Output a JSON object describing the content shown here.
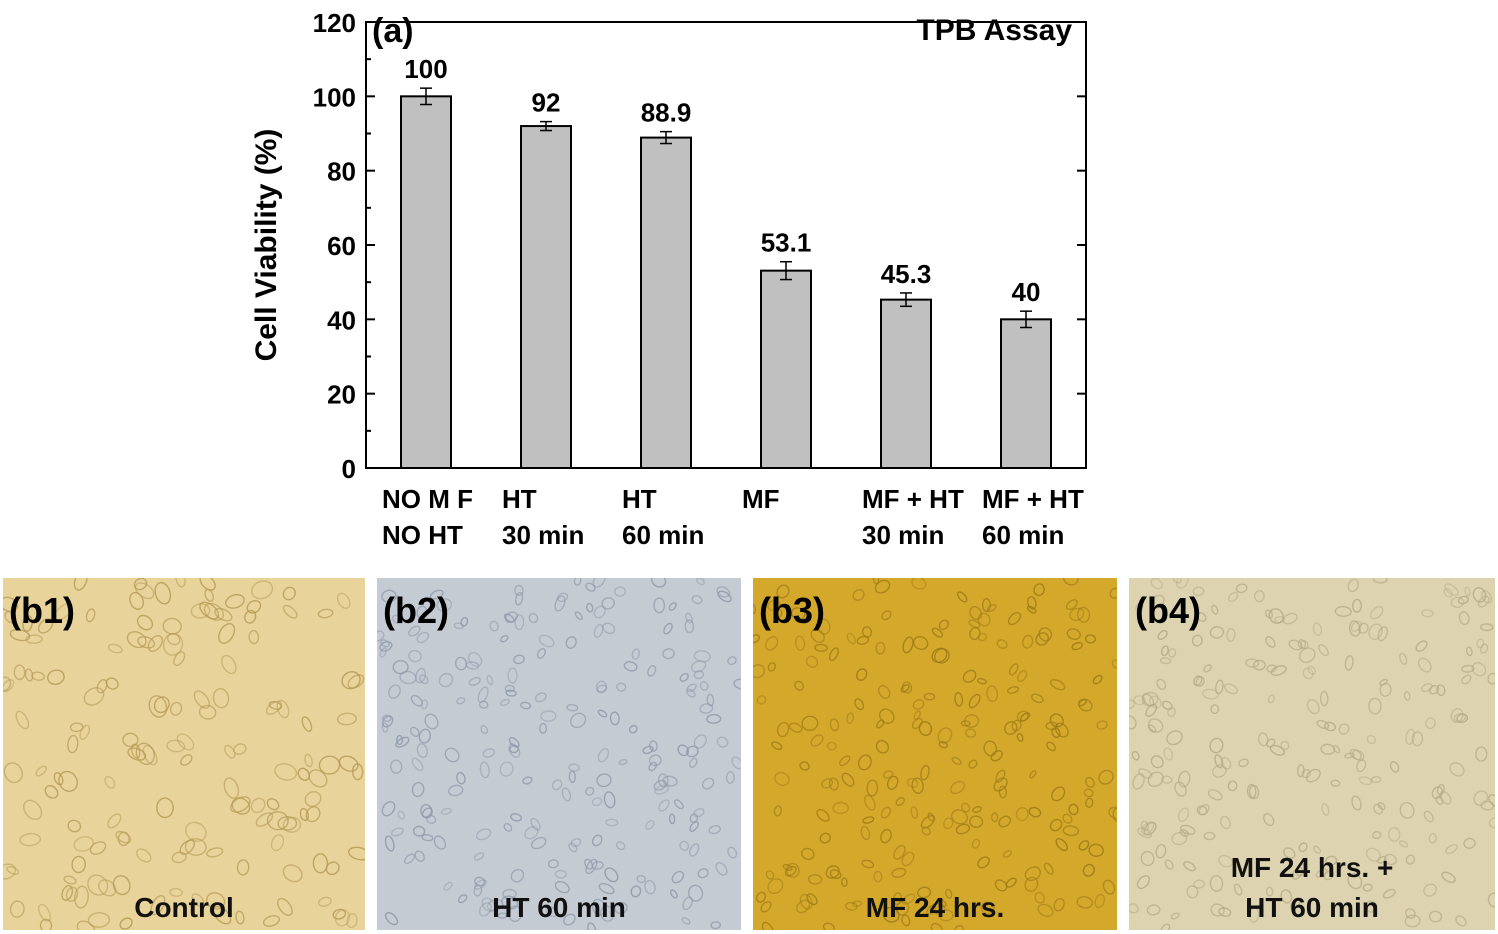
{
  "chart_data": {
    "type": "bar",
    "panel_label": "(a)",
    "title": "TPB Assay",
    "ylabel": "Cell Viability (%)",
    "xlabel": "",
    "ylim": [
      0,
      120
    ],
    "yticks": [
      "0",
      "20",
      "40",
      "60",
      "80",
      "100",
      "120"
    ],
    "categories": [
      [
        "NO M F",
        "NO HT"
      ],
      [
        "HT",
        "30 min"
      ],
      [
        "HT",
        "60 min"
      ],
      [
        "MF"
      ],
      [
        "MF + HT",
        "30 min"
      ],
      [
        "MF + HT",
        "60 min"
      ]
    ],
    "values": [
      100,
      92,
      88.9,
      53.1,
      45.3,
      40
    ],
    "value_labels": [
      "100",
      "92",
      "88.9",
      "53.1",
      "45.3",
      "40"
    ],
    "error": [
      2.2,
      1.2,
      1.6,
      2.4,
      1.8,
      2.2
    ],
    "bar_color": "#c0c0c0",
    "grid": false,
    "legend": "none"
  },
  "panels": [
    {
      "label": "(b1)",
      "caption": [
        "Control"
      ],
      "bg": "#e8d39a",
      "cell": "#b49a55"
    },
    {
      "label": "(b2)",
      "caption": [
        "HT 60 min"
      ],
      "bg": "#c5cbd3",
      "cell": "#8e99a8"
    },
    {
      "label": "(b3)",
      "caption": [
        "MF 24 hrs."
      ],
      "bg": "#d4a82a",
      "cell": "#9c7a16"
    },
    {
      "label": "(b4)",
      "caption": [
        "MF 24 hrs. +",
        "HT 60 min"
      ],
      "bg": "#ddd3b0",
      "cell": "#b3a983"
    }
  ]
}
